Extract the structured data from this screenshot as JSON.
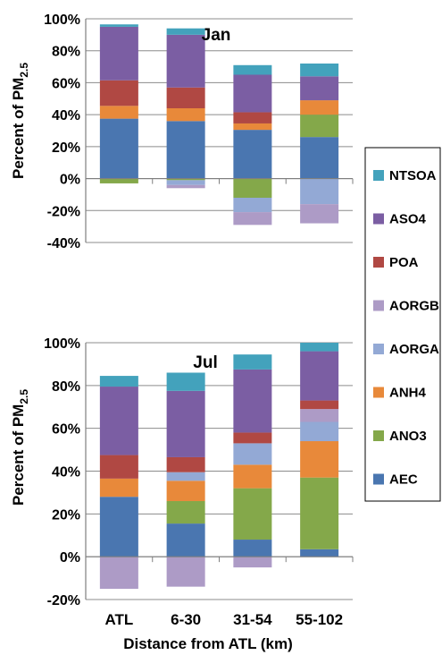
{
  "chart_data": {
    "type": "bar",
    "stacked": true,
    "grid": true,
    "legend_position": "right",
    "categories": [
      "ATL",
      "6-30",
      "31-54",
      "55-102"
    ],
    "xlabel": "Distance from ATL (km)",
    "ylabel_main": "Percent of PM",
    "ylabel_sub": "2.5",
    "series_order": [
      "AEC",
      "ANO3",
      "ANH4",
      "AORGA",
      "AORGB",
      "POA",
      "ASO4",
      "NTSOA"
    ],
    "legend_entries": [
      "NTSOA",
      "ASO4",
      "POA",
      "AORGB",
      "AORGA",
      "ANH4",
      "ANO3",
      "AEC"
    ],
    "colors": {
      "AEC": "#4a76b0",
      "ANO3": "#84a84a",
      "ANH4": "#e8893a",
      "AORGA": "#93a9d5",
      "AORGB": "#ad9bc6",
      "POA": "#b04843",
      "ASO4": "#7b5ea3",
      "NTSOA": "#43a2bc"
    },
    "panels": [
      {
        "title": "Jan",
        "ylim": [
          -40,
          100
        ],
        "yticks": [
          "-40%",
          "-20%",
          "0%",
          "20%",
          "40%",
          "60%",
          "80%",
          "100%"
        ],
        "series": {
          "AEC": [
            37.5,
            36,
            30.5,
            26
          ],
          "ANO3": [
            -3,
            -1,
            -12,
            14
          ],
          "ANH4": [
            8,
            8,
            4,
            9
          ],
          "AORGA": [
            0,
            -3,
            -9,
            -16
          ],
          "AORGB": [
            0,
            -2,
            -8,
            -12
          ],
          "POA": [
            16,
            13,
            7,
            0
          ],
          "ASO4": [
            33.5,
            33,
            23.5,
            15
          ],
          "NTSOA": [
            1.5,
            4,
            6,
            8
          ]
        }
      },
      {
        "title": "Jul",
        "ylim": [
          -20,
          100
        ],
        "yticks": [
          "-20%",
          "0%",
          "20%",
          "40%",
          "60%",
          "80%",
          "100%"
        ],
        "series": {
          "AEC": [
            28,
            15.5,
            8,
            3.5
          ],
          "ANO3": [
            0,
            10.5,
            24,
            33.5
          ],
          "ANH4": [
            8.5,
            9.5,
            11,
            17
          ],
          "AORGA": [
            0,
            4,
            10,
            9
          ],
          "AORGB": [
            -15,
            -14,
            -5,
            6
          ],
          "POA": [
            11,
            7,
            5,
            4
          ],
          "ASO4": [
            32,
            31,
            29.5,
            23
          ],
          "NTSOA": [
            5,
            8.5,
            7,
            4
          ]
        }
      }
    ]
  }
}
